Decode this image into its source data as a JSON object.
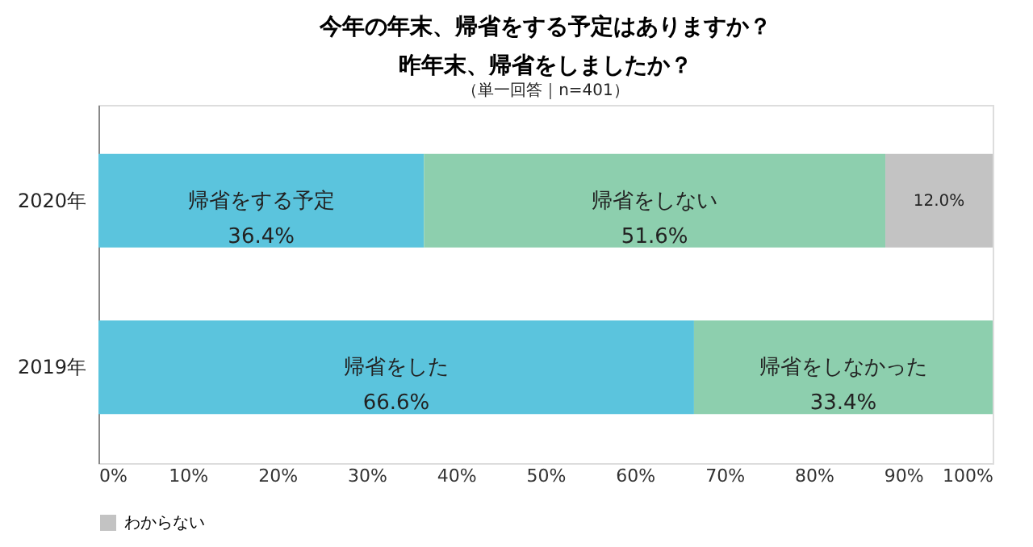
{
  "chart_data": {
    "type": "bar",
    "orientation": "horizontal",
    "stacked": true,
    "title": "今年の年末、帰省をする予定はありますか？昨年末、帰省をしましたか？",
    "subtitle": "（単一回答｜n=401）",
    "categories": [
      "2020年",
      "2019年"
    ],
    "series": [
      {
        "color": "#5bc4dd",
        "values": [
          36.4,
          66.6
        ],
        "value_labels": [
          "帰省をする予定\n36.4%",
          "帰省をした\n66.6%"
        ]
      },
      {
        "color": "#8dcfae",
        "values": [
          51.6,
          33.4
        ],
        "value_labels": [
          "帰省をしない\n51.6%",
          "帰省をしなかった\n33.4%"
        ]
      },
      {
        "name": "わからない",
        "color": "#c3c3c3",
        "values": [
          12.0,
          null
        ],
        "value_labels": [
          "12.0%",
          null
        ]
      }
    ],
    "xlim": [
      0,
      100
    ],
    "xticks": [
      {
        "value": 0,
        "label": "0%"
      },
      {
        "value": 10,
        "label": "10%"
      },
      {
        "value": 20,
        "label": "20%"
      },
      {
        "value": 30,
        "label": "30%"
      },
      {
        "value": 40,
        "label": "40%"
      },
      {
        "value": 50,
        "label": "50%"
      },
      {
        "value": 60,
        "label": "60%"
      },
      {
        "value": 70,
        "label": "70%"
      },
      {
        "value": 80,
        "label": "80%"
      },
      {
        "value": 90,
        "label": "90%"
      },
      {
        "value": 100,
        "label": "100%"
      }
    ],
    "legend": "bottom"
  }
}
